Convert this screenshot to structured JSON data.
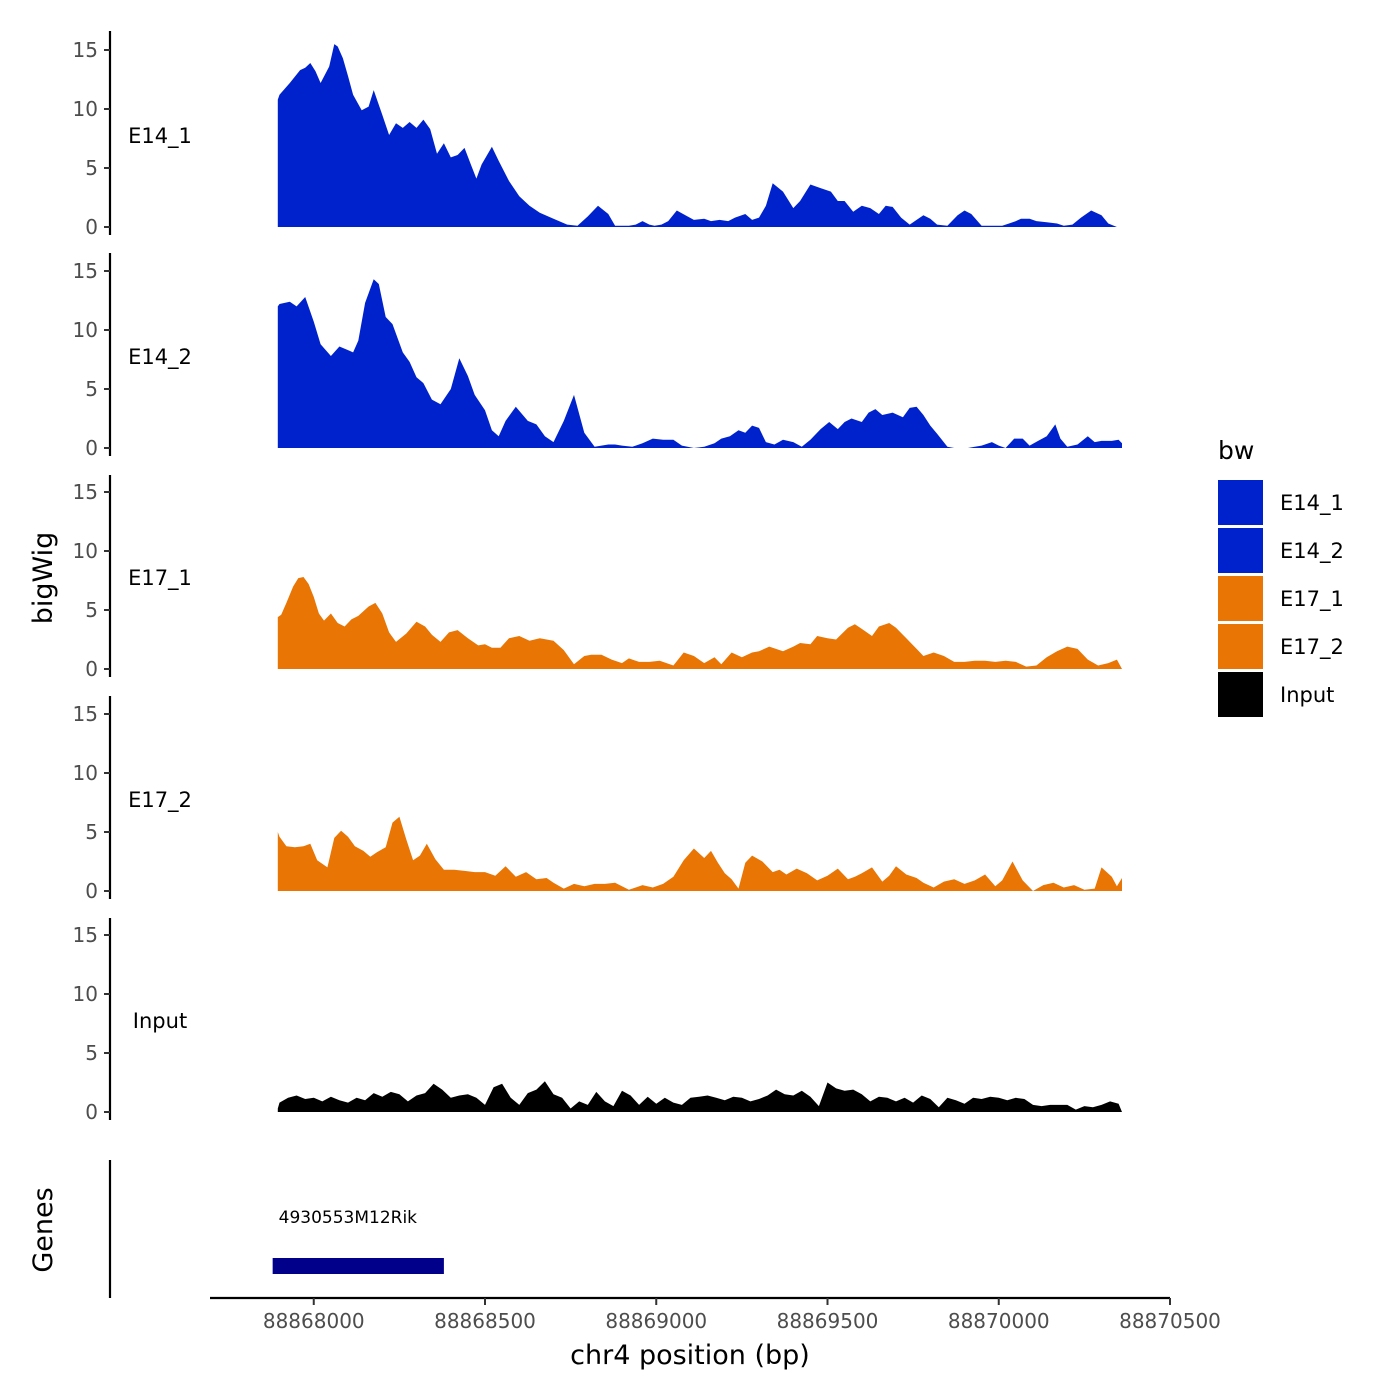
{
  "chart_data": {
    "type": "area",
    "title": "",
    "ylabel": "bigWig",
    "xlabel": "chr4 position (bp)",
    "genes_label": "Genes",
    "ylim": [
      0,
      16
    ],
    "yticks": [
      0,
      5,
      10,
      15
    ],
    "xlim": [
      88867700,
      88870500
    ],
    "xticks": [
      88868000,
      88868500,
      88869000,
      88869500,
      88870000,
      88870500
    ],
    "xtick_labels": [
      "88868000",
      "88868500",
      "88869000",
      "88869500",
      "88870000",
      "88870500"
    ],
    "legend": {
      "title": "bw",
      "position": "right",
      "entries": [
        {
          "label": "E14_1",
          "color": "#0022cc"
        },
        {
          "label": "E14_2",
          "color": "#0022cc"
        },
        {
          "label": "E17_1",
          "color": "#e87504"
        },
        {
          "label": "E17_2",
          "color": "#e87504"
        },
        {
          "label": "Input",
          "color": "#000000"
        }
      ]
    },
    "series": [
      {
        "name": "E14_1",
        "color": "#0022cc",
        "x": [
          88867895,
          88867900,
          88867930,
          88867960,
          88867975,
          88867990,
          88868005,
          88868020,
          88868045,
          88868060,
          88868070,
          88868085,
          88868100,
          88868115,
          88868140,
          88868160,
          88868175,
          88868200,
          88868220,
          88868240,
          88868260,
          88868280,
          88868300,
          88868320,
          88868340,
          88868360,
          88868380,
          88868400,
          88868420,
          88868440,
          88868460,
          88868475,
          88868490,
          88868520,
          88868540,
          88868570,
          88868600,
          88868630,
          88868660,
          88868700,
          88868740,
          88868770,
          88868800,
          88868830,
          88868860,
          88868880,
          88868900,
          88868920,
          88868940,
          88868960,
          88868980,
          88868995,
          88869015,
          88869035,
          88869060,
          88869085,
          88869110,
          88869140,
          88869160,
          88869185,
          88869210,
          88869230,
          88869260,
          88869280,
          88869300,
          88869320,
          88869340,
          88869370,
          88869400,
          88869420,
          88869450,
          88869480,
          88869510,
          88869530,
          88869550,
          88869575,
          88869600,
          88869625,
          88869650,
          88869670,
          88869690,
          88869715,
          88869740,
          88869760,
          88869780,
          88869800,
          88869820,
          88869850,
          88869880,
          88869900,
          88869920,
          88869950,
          88869970,
          88869990,
          88870010,
          88870030,
          88870050,
          88870065,
          88870090,
          88870110,
          88870140,
          88870170,
          88870190,
          88870215,
          88870240,
          88870270,
          88870300,
          88870320,
          88870345,
          88870360
        ],
        "values": [
          10.8,
          11.2,
          12.2,
          13.3,
          13.5,
          13.9,
          13.2,
          12.2,
          13.6,
          15.5,
          15.3,
          14.3,
          12.8,
          11.2,
          9.9,
          10.2,
          11.6,
          9.5,
          7.8,
          8.8,
          8.4,
          8.9,
          8.4,
          9.1,
          8.3,
          6.2,
          7.1,
          5.9,
          6.1,
          6.7,
          5.2,
          4.1,
          5.3,
          6.8,
          5.6,
          3.9,
          2.6,
          1.8,
          1.2,
          0.7,
          0.2,
          0.1,
          0.9,
          1.8,
          1.1,
          0.1,
          0.1,
          0.1,
          0.2,
          0.5,
          0.2,
          0.1,
          0.2,
          0.5,
          1.4,
          1.0,
          0.6,
          0.7,
          0.5,
          0.6,
          0.5,
          0.8,
          1.1,
          0.6,
          0.8,
          1.8,
          3.7,
          3.0,
          1.6,
          2.2,
          3.6,
          3.3,
          3.0,
          2.2,
          2.2,
          1.3,
          1.8,
          1.6,
          1.1,
          1.8,
          1.7,
          0.8,
          0.2,
          0.6,
          1.0,
          0.7,
          0.2,
          0.1,
          1.0,
          1.4,
          1.1,
          0.1,
          0.1,
          0.1,
          0.1,
          0.3,
          0.5,
          0.7,
          0.7,
          0.5,
          0.4,
          0.3,
          0.1,
          0.2,
          0.8,
          1.4,
          1.0,
          0.3,
          0.0,
          0.0
        ]
      },
      {
        "name": "E14_2",
        "color": "#0022cc",
        "x": [
          88867895,
          88867900,
          88867930,
          88867950,
          88867975,
          88868000,
          88868020,
          88868050,
          88868075,
          88868100,
          88868115,
          88868130,
          88868150,
          88868175,
          88868190,
          88868210,
          88868230,
          88868260,
          88868280,
          88868300,
          88868320,
          88868345,
          88868370,
          88868400,
          88868425,
          88868450,
          88868470,
          88868500,
          88868520,
          88868540,
          88868560,
          88868590,
          88868625,
          88868650,
          88868675,
          88868700,
          88868730,
          88868760,
          88868790,
          88868820,
          88868860,
          88868880,
          88868900,
          88868930,
          88868960,
          88868990,
          88869020,
          88869050,
          88869075,
          88869110,
          88869140,
          88869170,
          88869190,
          88869215,
          88869240,
          88869260,
          88869280,
          88869300,
          88869320,
          88869345,
          88869370,
          88869400,
          88869425,
          88869450,
          88869480,
          88869505,
          88869530,
          88869550,
          88869570,
          88869600,
          88869620,
          88869640,
          88869660,
          88869690,
          88869720,
          88869740,
          88869760,
          88869780,
          88869800,
          88869820,
          88869850,
          88869870,
          88869890,
          88869910,
          88869930,
          88869950,
          88869980,
          88870000,
          88870020,
          88870045,
          88870070,
          88870090,
          88870115,
          88870140,
          88870165,
          88870180,
          88870200,
          88870230,
          88870260,
          88870280,
          88870300,
          88870330,
          88870350,
          88870360
        ],
        "values": [
          12.0,
          12.2,
          12.4,
          12.0,
          12.8,
          10.7,
          8.8,
          7.8,
          8.6,
          8.3,
          8.1,
          9.1,
          12.3,
          14.3,
          13.9,
          11.1,
          10.5,
          8.1,
          7.3,
          6.0,
          5.5,
          4.1,
          3.7,
          5.0,
          7.6,
          6.1,
          4.5,
          3.2,
          1.5,
          1.0,
          2.3,
          3.5,
          2.3,
          2.0,
          1.0,
          0.5,
          2.3,
          4.5,
          1.3,
          0.1,
          0.3,
          0.3,
          0.2,
          0.1,
          0.4,
          0.8,
          0.7,
          0.7,
          0.2,
          0.0,
          0.1,
          0.4,
          0.8,
          1.0,
          1.5,
          1.3,
          1.9,
          1.7,
          0.5,
          0.3,
          0.7,
          0.5,
          0.1,
          0.7,
          1.6,
          2.2,
          1.6,
          2.2,
          2.5,
          2.2,
          3.0,
          3.3,
          2.8,
          3.0,
          2.6,
          3.4,
          3.5,
          2.8,
          1.9,
          1.2,
          0.1,
          0.0,
          0.0,
          0.0,
          0.1,
          0.2,
          0.5,
          0.2,
          0.0,
          0.8,
          0.8,
          0.2,
          0.6,
          1.0,
          2.0,
          0.8,
          0.1,
          0.3,
          1.0,
          0.5,
          0.6,
          0.6,
          0.7,
          0.4
        ]
      },
      {
        "name": "E17_1",
        "color": "#e87504",
        "x": [
          88867895,
          88867905,
          88867920,
          88867940,
          88867955,
          88867970,
          88867985,
          88868000,
          88868015,
          88868030,
          88868050,
          88868070,
          88868090,
          88868110,
          88868130,
          88868160,
          88868180,
          88868200,
          88868220,
          88868240,
          88868270,
          88868300,
          88868325,
          88868345,
          88868370,
          88868395,
          88868420,
          88868450,
          88868480,
          88868500,
          88868520,
          88868545,
          88868570,
          88868600,
          88868630,
          88868660,
          88868680,
          88868700,
          88868730,
          88868760,
          88868790,
          88868810,
          88868840,
          88868870,
          88868900,
          88868920,
          88868950,
          88868980,
          88869010,
          88869050,
          88869080,
          88869110,
          88869140,
          88869170,
          88869190,
          88869220,
          88869250,
          88869280,
          88869300,
          88869330,
          88869370,
          88869400,
          88869420,
          88869450,
          88869470,
          88869500,
          88869525,
          88869560,
          88869580,
          88869600,
          88869630,
          88869650,
          88869680,
          88869700,
          88869730,
          88869760,
          88869780,
          88869810,
          88869840,
          88869870,
          88869900,
          88869930,
          88869960,
          88869990,
          88870020,
          88870050,
          88870080,
          88870110,
          88870140,
          88870170,
          88870200,
          88870230,
          88870260,
          88870290,
          88870320,
          88870345,
          88870360
        ],
        "values": [
          4.4,
          4.6,
          5.6,
          7.0,
          7.7,
          7.8,
          7.2,
          6.1,
          4.7,
          4.1,
          4.7,
          3.9,
          3.6,
          4.2,
          4.5,
          5.3,
          5.6,
          4.7,
          3.1,
          2.3,
          3.0,
          4.0,
          3.6,
          2.9,
          2.3,
          3.1,
          3.3,
          2.6,
          2.0,
          2.1,
          1.8,
          1.8,
          2.6,
          2.8,
          2.4,
          2.6,
          2.5,
          2.4,
          1.6,
          0.4,
          1.1,
          1.2,
          1.2,
          0.8,
          0.5,
          0.9,
          0.6,
          0.6,
          0.7,
          0.3,
          1.4,
          1.1,
          0.5,
          1.0,
          0.4,
          1.4,
          1.0,
          1.4,
          1.5,
          1.9,
          1.5,
          1.9,
          2.2,
          2.1,
          2.8,
          2.6,
          2.5,
          3.5,
          3.8,
          3.4,
          2.8,
          3.6,
          3.9,
          3.5,
          2.6,
          1.7,
          1.1,
          1.4,
          1.1,
          0.6,
          0.6,
          0.7,
          0.7,
          0.6,
          0.7,
          0.6,
          0.2,
          0.3,
          1.0,
          1.5,
          1.9,
          1.7,
          0.8,
          0.3,
          0.5,
          0.8,
          0.0
        ]
      },
      {
        "name": "E17_2",
        "color": "#e87504",
        "x": [
          88867895,
          88867900,
          88867920,
          88867945,
          88867970,
          88867990,
          88868010,
          88868040,
          88868060,
          88868080,
          88868100,
          88868120,
          88868145,
          88868165,
          88868185,
          88868210,
          88868230,
          88868250,
          88868270,
          88868290,
          88868310,
          88868330,
          88868355,
          88868380,
          88868410,
          88868440,
          88868470,
          88868500,
          88868530,
          88868560,
          88868590,
          88868620,
          88868650,
          88868680,
          88868700,
          88868730,
          88868760,
          88868790,
          88868820,
          88868850,
          88868880,
          88868920,
          88868960,
          88868990,
          88869020,
          88869050,
          88869080,
          88869110,
          88869140,
          88869160,
          88869180,
          88869200,
          88869220,
          88869240,
          88869260,
          88869280,
          88869310,
          88869340,
          88869360,
          88869380,
          88869410,
          88869440,
          88869470,
          88869500,
          88869530,
          88869560,
          88869580,
          88869600,
          88869630,
          88869660,
          88869680,
          88869700,
          88869730,
          88869760,
          88869780,
          88869810,
          88869840,
          88869870,
          88869900,
          88869930,
          88869960,
          88869990,
          88870010,
          88870040,
          88870070,
          88870100,
          88870130,
          88870160,
          88870190,
          88870220,
          88870250,
          88870280,
          88870300,
          88870330,
          88870345,
          88870360
        ],
        "values": [
          5.0,
          4.6,
          3.8,
          3.7,
          3.8,
          4.0,
          2.6,
          2.0,
          4.5,
          5.1,
          4.6,
          3.8,
          3.4,
          2.9,
          3.3,
          3.7,
          5.8,
          6.3,
          4.4,
          2.6,
          3.0,
          4.0,
          2.7,
          1.8,
          1.8,
          1.7,
          1.6,
          1.6,
          1.3,
          2.1,
          1.2,
          1.6,
          1.0,
          1.1,
          0.7,
          0.2,
          0.6,
          0.4,
          0.6,
          0.6,
          0.7,
          0.1,
          0.5,
          0.3,
          0.6,
          1.2,
          2.6,
          3.6,
          2.8,
          3.4,
          2.4,
          1.5,
          1.0,
          0.2,
          2.4,
          3.0,
          2.5,
          1.6,
          1.8,
          1.4,
          1.9,
          1.5,
          0.9,
          1.3,
          1.9,
          1.0,
          1.2,
          1.5,
          2.0,
          0.8,
          1.3,
          2.1,
          1.4,
          1.1,
          0.7,
          0.3,
          0.8,
          1.0,
          0.6,
          0.9,
          1.4,
          0.4,
          0.9,
          2.5,
          0.9,
          0.0,
          0.5,
          0.7,
          0.3,
          0.5,
          0.1,
          0.2,
          2.0,
          1.2,
          0.4,
          1.1
        ]
      },
      {
        "name": "Input",
        "color": "#000000",
        "x": [
          88867895,
          88867900,
          88867925,
          88867950,
          88867975,
          88868000,
          88868025,
          88868050,
          88868075,
          88868100,
          88868125,
          88868150,
          88868175,
          88868200,
          88868225,
          88868250,
          88868275,
          88868300,
          88868325,
          88868350,
          88868375,
          88868400,
          88868425,
          88868450,
          88868475,
          88868500,
          88868525,
          88868550,
          88868575,
          88868600,
          88868625,
          88868650,
          88868675,
          88868700,
          88868725,
          88868750,
          88868775,
          88868800,
          88868825,
          88868850,
          88868875,
          88868900,
          88868925,
          88868950,
          88868975,
          88869000,
          88869025,
          88869050,
          88869075,
          88869100,
          88869125,
          88869150,
          88869175,
          88869200,
          88869225,
          88869250,
          88869275,
          88869300,
          88869325,
          88869350,
          88869375,
          88869400,
          88869425,
          88869450,
          88869475,
          88869500,
          88869525,
          88869550,
          88869575,
          88869600,
          88869625,
          88869650,
          88869675,
          88869700,
          88869725,
          88869750,
          88869775,
          88869800,
          88869825,
          88869850,
          88869875,
          88869900,
          88869925,
          88869950,
          88869975,
          88870000,
          88870025,
          88870050,
          88870075,
          88870100,
          88870125,
          88870150,
          88870175,
          88870200,
          88870225,
          88870250,
          88870275,
          88870300,
          88870325,
          88870350,
          88870360
        ],
        "values": [
          0.3,
          0.8,
          1.2,
          1.4,
          1.1,
          1.2,
          0.9,
          1.3,
          1.0,
          0.8,
          1.2,
          1.0,
          1.6,
          1.3,
          1.7,
          1.5,
          0.9,
          1.4,
          1.6,
          2.4,
          1.9,
          1.2,
          1.4,
          1.5,
          1.2,
          0.6,
          2.1,
          2.4,
          1.2,
          0.6,
          1.6,
          1.9,
          2.6,
          1.5,
          1.2,
          0.3,
          0.9,
          0.6,
          1.7,
          0.9,
          0.5,
          1.8,
          1.4,
          0.6,
          1.3,
          0.7,
          1.2,
          0.8,
          0.6,
          1.2,
          1.3,
          1.4,
          1.2,
          1.0,
          1.3,
          1.2,
          0.9,
          1.1,
          1.4,
          1.9,
          1.5,
          1.4,
          1.8,
          1.3,
          0.5,
          2.5,
          2.0,
          1.8,
          1.9,
          1.5,
          0.9,
          1.3,
          1.2,
          0.9,
          1.2,
          0.8,
          1.4,
          1.1,
          0.4,
          1.2,
          1.0,
          0.7,
          1.2,
          1.1,
          1.3,
          1.2,
          1.0,
          1.2,
          1.1,
          0.6,
          0.5,
          0.6,
          0.6,
          0.6,
          0.2,
          0.5,
          0.4,
          0.6,
          0.9,
          0.7,
          0.0
        ]
      }
    ],
    "genes": [
      {
        "name": "4930553M12Rik",
        "start": 88867880,
        "end": 88868380,
        "color": "#00008b"
      }
    ]
  }
}
